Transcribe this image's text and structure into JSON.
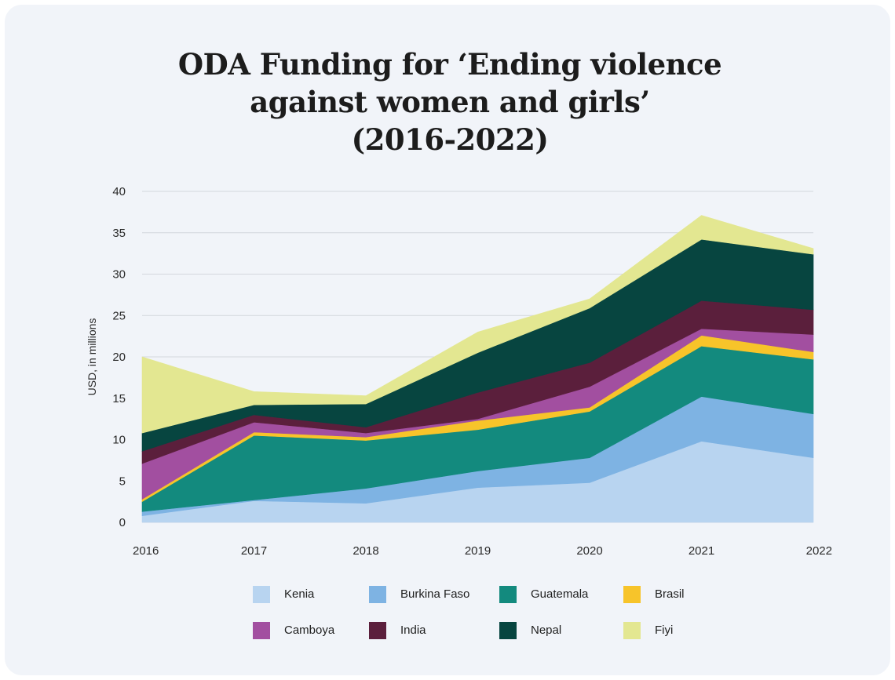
{
  "title_lines": [
    "ODA Funding for ‘Ending violence",
    "against women and girls’",
    "(2016-2022)"
  ],
  "chart_data": {
    "type": "area",
    "stacked": true,
    "title": "ODA Funding for ‘Ending violence against women and girls’ (2016-2022)",
    "xlabel": "",
    "ylabel": "USD, in millions",
    "x": [
      "2016",
      "2017",
      "2018",
      "2019",
      "2020",
      "2021",
      "2022"
    ],
    "ylim": [
      0,
      40
    ],
    "yticks": [
      "0",
      "5",
      "10",
      "15",
      "20",
      "25",
      "30",
      "35",
      "40"
    ],
    "grid": true,
    "legend_position": "bottom",
    "series": [
      {
        "name": "Kenia",
        "color": "#b8d4f0",
        "values": [
          0.8,
          2.6,
          2.3,
          4.2,
          4.8,
          9.8,
          7.8
        ]
      },
      {
        "name": "Burkina Faso",
        "color": "#7eb3e3",
        "values": [
          0.5,
          0.1,
          1.8,
          2.0,
          3.0,
          5.4,
          5.3
        ]
      },
      {
        "name": "Guatemala",
        "color": "#138a7e",
        "values": [
          1.2,
          7.8,
          5.8,
          5.0,
          5.6,
          6.1,
          6.6
        ]
      },
      {
        "name": "Brasil",
        "color": "#f7c42a",
        "values": [
          0.3,
          0.4,
          0.4,
          1.1,
          0.5,
          1.3,
          0.9
        ]
      },
      {
        "name": "Camboya",
        "color": "#a24fa0",
        "values": [
          4.3,
          1.2,
          0.5,
          0.2,
          2.5,
          0.8,
          2.1
        ]
      },
      {
        "name": "India",
        "color": "#5b1f3c",
        "values": [
          1.5,
          0.9,
          0.7,
          3.2,
          2.9,
          3.4,
          3.0
        ]
      },
      {
        "name": "Nepal",
        "color": "#074540",
        "values": [
          2.2,
          1.2,
          2.8,
          4.8,
          6.6,
          7.4,
          6.7
        ]
      },
      {
        "name": "Fiyi",
        "color": "#e3e791",
        "values": [
          9.2,
          1.6,
          1.0,
          2.5,
          1.1,
          2.9,
          0.7
        ]
      }
    ]
  }
}
